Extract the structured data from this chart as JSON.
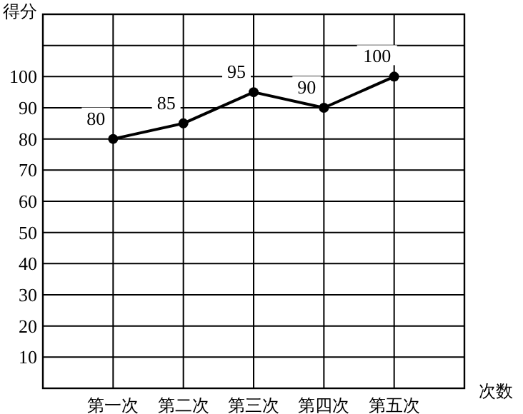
{
  "chart_data": {
    "type": "line",
    "xlabel": "次数",
    "ylabel": "得分",
    "categories": [
      "第一次",
      "第二次",
      "第三次",
      "第四次",
      "第五次"
    ],
    "values": [
      80,
      85,
      95,
      90,
      100
    ],
    "color": "#000000",
    "ylim": [
      0,
      120
    ],
    "yticks": [
      10,
      20,
      30,
      40,
      50,
      60,
      70,
      80,
      90,
      100,
      {
        "value": 110,
        "label": null
      }
    ],
    "grid": true,
    "marker": "circle",
    "line_style": "solid",
    "data_labels": true
  }
}
